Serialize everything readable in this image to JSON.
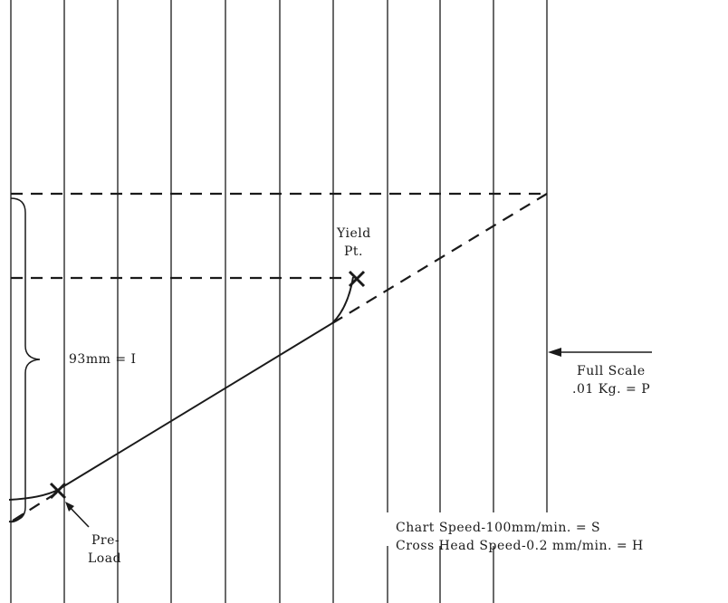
{
  "labels": {
    "yield_line1": "Yield",
    "yield_line2": "Pt.",
    "measure": "93mm = I",
    "full_scale_line1": "Full Scale",
    "full_scale_line2": ".01 Kg. = P",
    "chart_speed": "Chart Speed-100mm/min. = S",
    "crosshead_speed": "Cross Head Speed-0.2 mm/min. = H",
    "preload_line1": "Pre-",
    "preload_line2": "Load"
  }
}
